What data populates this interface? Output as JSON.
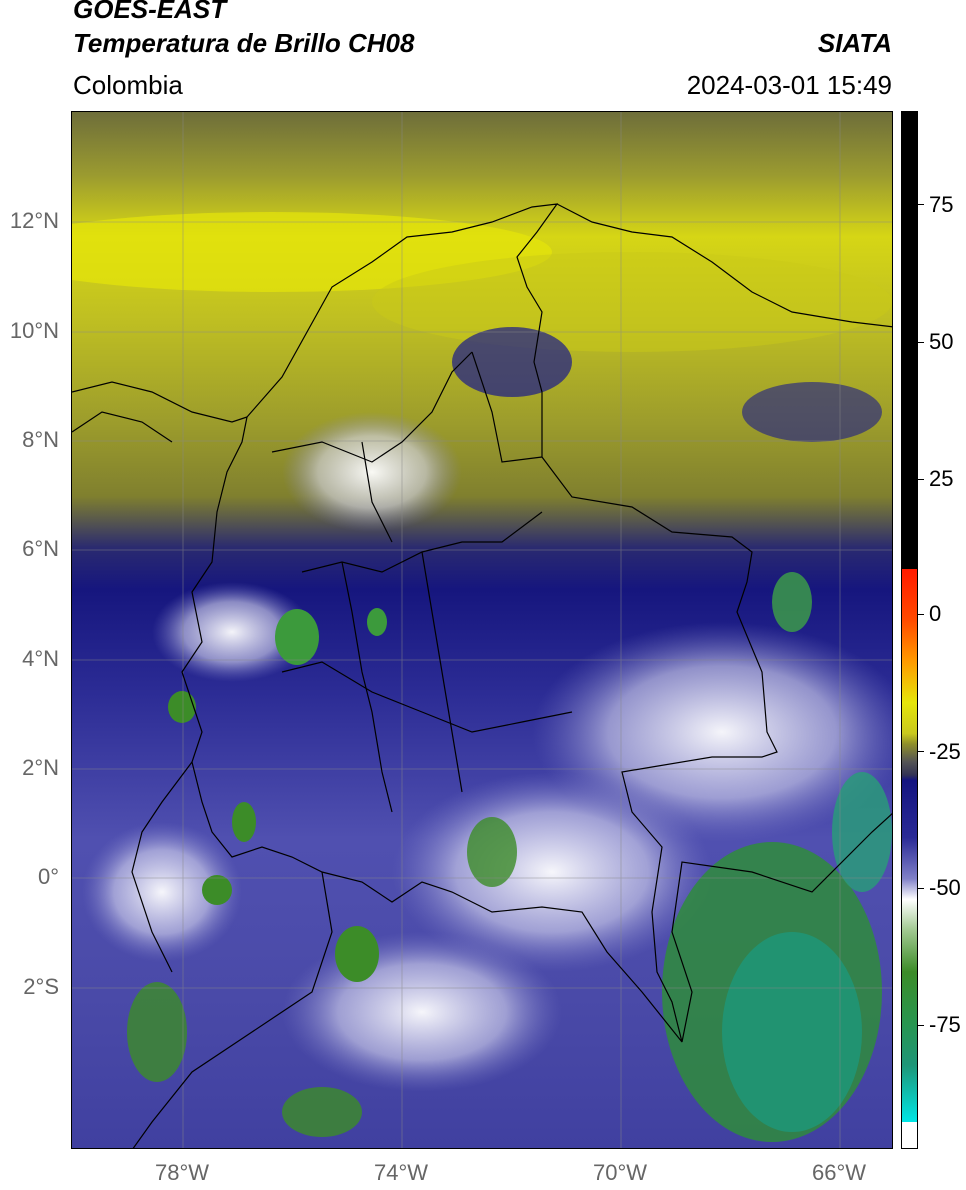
{
  "header": {
    "satellite": "GOES-EAST",
    "product": "Temperatura de Brillo CH08",
    "brand": "SIATA",
    "region": "Colombia",
    "timestamp": "2024-03-01 15:49"
  },
  "map": {
    "lat_labels": [
      "12°N",
      "10°N",
      "8°N",
      "6°N",
      "4°N",
      "2°N",
      "0°",
      "2°S"
    ],
    "lon_labels": [
      "78°W",
      "74°W",
      "70°W",
      "66°W"
    ],
    "gridlines": true
  },
  "colorbar": {
    "ticks": [
      "75",
      "50",
      "25",
      "0",
      "-25",
      "-50",
      "-75"
    ],
    "colors": {
      "black": "#000000",
      "red": "#ff1a00",
      "orange": "#ff9a00",
      "yellow": "#e6e60a",
      "olive": "#8f8f2a",
      "gray": "#555555",
      "navy": "#141480",
      "blue": "#4646b4",
      "white": "#ffffff",
      "green": "#3c8c28",
      "teal": "#1e9678",
      "cyan": "#00e6e6"
    }
  }
}
